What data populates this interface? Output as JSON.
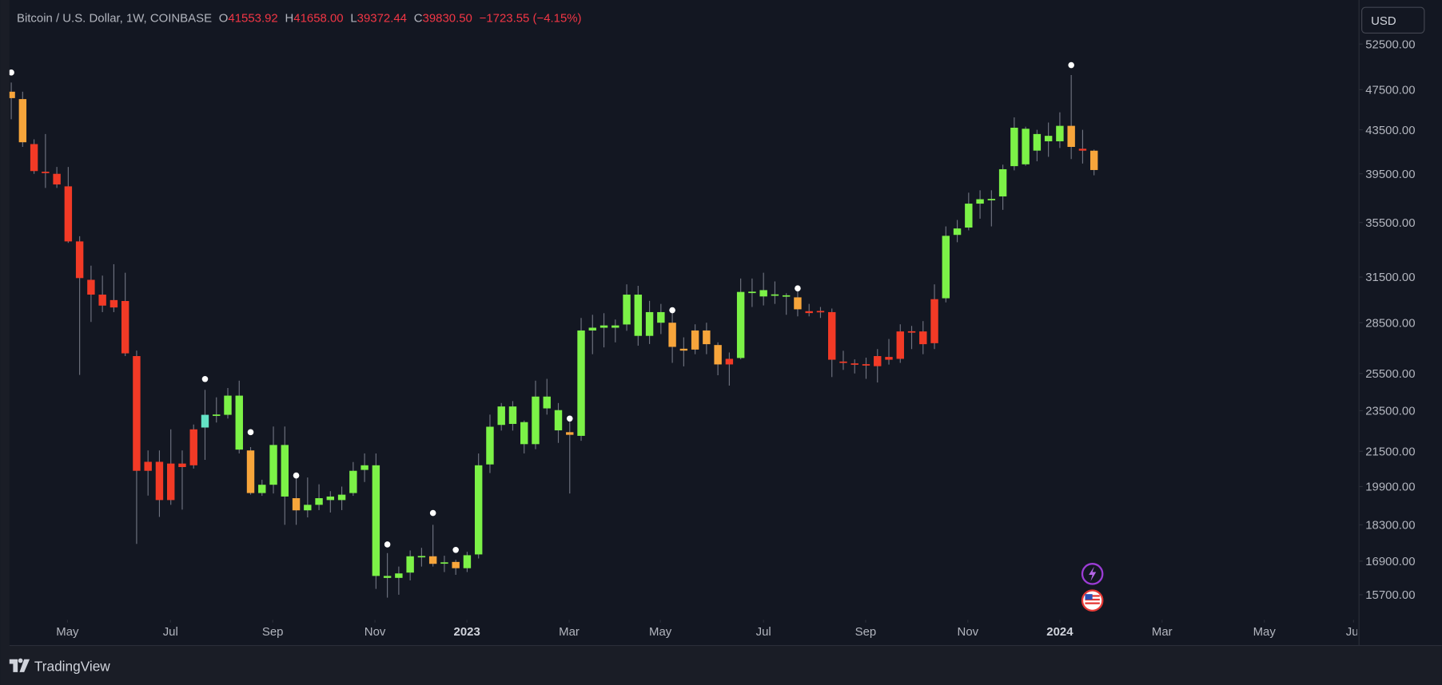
{
  "chart_data": {
    "type": "candlestick",
    "title": "Bitcoin / U.S. Dollar, 1W, COINBASE",
    "legend": [
      {
        "prefix": "O",
        "value": 41553.92,
        "label": "41553.92"
      },
      {
        "prefix": "H",
        "value": 41658,
        "label": "41658.00"
      },
      {
        "prefix": "L",
        "value": 39372.44,
        "label": "39372.44"
      },
      {
        "prefix": "C",
        "value": 39830.5,
        "label": "39830.50"
      }
    ],
    "change": "−1723.55 (−4.15%)",
    "currency": "USD",
    "brand": "TradingView",
    "log_scale": true,
    "grid": false,
    "open": [
      47290,
      46530,
      42160,
      39660,
      39500,
      38430,
      34060,
      31310,
      30310,
      29950,
      29890,
      26490,
      20600,
      21010,
      19320,
      20930,
      20850,
      22650,
      23290,
      23290,
      24290,
      21540,
      19620,
      19980,
      21800,
      19400,
      18890,
      19120,
      19320,
      19320,
      19620,
      20640,
      20850,
      16360,
      16290,
      16480,
      17080,
      17080,
      16840,
      16870,
      16640,
      17150,
      20890,
      22780,
      23720,
      22920,
      21840,
      24240,
      23530,
      22420,
      22240,
      28020,
      28190,
      28190,
      28390,
      30310,
      27690,
      29170,
      28500,
      26920,
      26870,
      28020,
      27140,
      26010,
      26380,
      30490,
      30190,
      30310,
      30250,
      30130,
      29230,
      29230,
      29170,
      26170,
      26050,
      26010,
      25910,
      26440,
      26330,
      27960,
      27960,
      27250,
      30070,
      34550,
      35110,
      37000,
      37360,
      37590,
      40170,
      43600,
      41560,
      42420,
      42420,
      43880,
      41730,
      41553.92
    ],
    "high": [
      48250,
      47290,
      42600,
      43100,
      40100,
      40100,
      34450,
      32300,
      31600,
      32400,
      31800,
      26810,
      21540,
      21540,
      22560,
      21540,
      22800,
      24600,
      24200,
      24700,
      25100,
      21700,
      20200,
      22700,
      22700,
      20400,
      20300,
      20000,
      19700,
      19900,
      21000,
      21400,
      21400,
      17200,
      16700,
      17300,
      17400,
      18300,
      17100,
      16950,
      17250,
      21400,
      23300,
      23900,
      24000,
      23000,
      25100,
      25200,
      23900,
      23000,
      28800,
      29000,
      29100,
      28700,
      31000,
      30900,
      29900,
      29700,
      29200,
      27600,
      28400,
      28500,
      27300,
      26700,
      31400,
      31400,
      31800,
      31200,
      30400,
      30700,
      29700,
      29500,
      29400,
      26800,
      26300,
      26400,
      26900,
      27500,
      28400,
      28300,
      28600,
      31000,
      35200,
      35700,
      37900,
      38100,
      38100,
      40300,
      44700,
      43800,
      43500,
      44200,
      45200,
      49050,
      43500,
      41658
    ],
    "low": [
      44520,
      41900,
      39500,
      38300,
      38300,
      33950,
      25420,
      28550,
      29170,
      29170,
      26490,
      17550,
      19510,
      18620,
      19120,
      18920,
      20700,
      21100,
      22900,
      23100,
      21400,
      19550,
      19500,
      19600,
      18300,
      18300,
      18600,
      18900,
      18800,
      18900,
      19500,
      20100,
      15900,
      15600,
      15700,
      16200,
      16700,
      16700,
      16500,
      16400,
      16500,
      17000,
      20500,
      22500,
      22500,
      21400,
      21600,
      23300,
      21900,
      19600,
      22000,
      26600,
      27000,
      27300,
      28000,
      27100,
      27200,
      27800,
      26100,
      25900,
      26600,
      26600,
      25400,
      24830,
      26300,
      29500,
      29600,
      29700,
      29000,
      28900,
      28900,
      28800,
      25300,
      25700,
      25500,
      25200,
      25000,
      26000,
      26100,
      26900,
      26600,
      26900,
      29800,
      34000,
      34900,
      35800,
      35200,
      36500,
      39800,
      40200,
      40600,
      41000,
      41800,
      40800,
      40400,
      39372.44
    ],
    "close": [
      46630,
      42330,
      39740,
      39580,
      38590,
      34060,
      31430,
      30310,
      29590,
      29470,
      26650,
      20600,
      21010,
      19320,
      20930,
      20770,
      22560,
      23290,
      23250,
      24290,
      21580,
      19620,
      19980,
      21800,
      19470,
      18890,
      19120,
      19400,
      19470,
      19550,
      20600,
      20850,
      16360,
      16290,
      16450,
      17080,
      17050,
      16800,
      16820,
      16640,
      17120,
      20850,
      22690,
      23720,
      22830,
      21840,
      24240,
      23620,
      22510,
      22290,
      28020,
      28190,
      28330,
      28330,
      30310,
      27690,
      29170,
      28500,
      27030,
      26810,
      28020,
      27190,
      26010,
      26330,
      30490,
      30430,
      30610,
      30250,
      30190,
      29350,
      29110,
      29170,
      26280,
      26100,
      26010,
      25960,
      26490,
      26280,
      27960,
      27900,
      27190,
      30010,
      34480,
      35040,
      37000,
      37360,
      37300,
      39900,
      43700,
      40330,
      43100,
      42930,
      43880,
      41900,
      41560,
      39830.5
    ],
    "colors": [
      "#f7a53b",
      "#f7a53b",
      "#f23a26",
      "#f23a26",
      "#f23a26",
      "#f23a26",
      "#f23a26",
      "#f23a26",
      "#f23a26",
      "#f23a26",
      "#f23a26",
      "#f23a26",
      "#f23a26",
      "#f23a26",
      "#f23a26",
      "#f23a26",
      "#f23a26",
      "#63e3c6",
      "#7cf247",
      "#7cf247",
      "#7cf247",
      "#f7a53b",
      "#7cf247",
      "#7cf247",
      "#7cf247",
      "#f7a53b",
      "#7cf247",
      "#7cf247",
      "#7cf247",
      "#7cf247",
      "#7cf247",
      "#7cf247",
      "#7cf247",
      "#7cf247",
      "#7cf247",
      "#7cf247",
      "#7cf247",
      "#f7a53b",
      "#7cf247",
      "#f7a53b",
      "#7cf247",
      "#7cf247",
      "#7cf247",
      "#7cf247",
      "#7cf247",
      "#7cf247",
      "#7cf247",
      "#7cf247",
      "#7cf247",
      "#f7a53b",
      "#7cf247",
      "#7cf247",
      "#7cf247",
      "#7cf247",
      "#7cf247",
      "#7cf247",
      "#7cf247",
      "#7cf247",
      "#f7a53b",
      "#f7a53b",
      "#f7a53b",
      "#f7a53b",
      "#f7a53b",
      "#f23a26",
      "#7cf247",
      "#7cf247",
      "#7cf247",
      "#7cf247",
      "#7cf247",
      "#f7a53b",
      "#f23a26",
      "#f23a26",
      "#f23a26",
      "#f23a26",
      "#f23a26",
      "#f23a26",
      "#f23a26",
      "#f23a26",
      "#f23a26",
      "#f23a26",
      "#f23a26",
      "#f23a26",
      "#7cf247",
      "#7cf247",
      "#7cf247",
      "#7cf247",
      "#7cf247",
      "#7cf247",
      "#7cf247",
      "#7cf247",
      "#7cf247",
      "#7cf247",
      "#7cf247",
      "#f7a53b",
      "#f23a26",
      "#f7a53b"
    ],
    "wick_color": "#6f7380",
    "marker_color": "#ffffff",
    "marker_x": [
      0,
      17,
      21,
      25,
      33,
      37,
      39,
      49,
      58,
      69,
      93
    ],
    "marker_values": [
      49320,
      25190,
      22420,
      20390,
      17530,
      18780,
      17320,
      23100,
      29290,
      30730,
      50130
    ],
    "xlim": [
      -0.16,
      118.25
    ],
    "xticks": [
      {
        "value": 4.93,
        "label": "May"
      },
      {
        "value": 13.97,
        "label": "Jul"
      },
      {
        "value": 22.94,
        "label": "Sep"
      },
      {
        "value": 31.91,
        "label": "Nov"
      },
      {
        "value": 39.98,
        "label": "2023"
      },
      {
        "value": 48.95,
        "label": "Mar"
      },
      {
        "value": 56.95,
        "label": "May"
      },
      {
        "value": 66.0,
        "label": "Jul"
      },
      {
        "value": 74.96,
        "label": "Sep"
      },
      {
        "value": 83.93,
        "label": "Nov"
      },
      {
        "value": 92.0,
        "label": "2024"
      },
      {
        "value": 100.97,
        "label": "Mar"
      },
      {
        "value": 109.94,
        "label": "May"
      },
      {
        "value": 117.77,
        "label": "Jul"
      }
    ],
    "ylim": [
      14860,
      57240
    ],
    "yticks": [
      {
        "value": 52500,
        "label": "52500.00"
      },
      {
        "value": 47500,
        "label": "47500.00"
      },
      {
        "value": 43500,
        "label": "43500.00"
      },
      {
        "value": 39500,
        "label": "39500.00"
      },
      {
        "value": 35500,
        "label": "35500.00"
      },
      {
        "value": 31500,
        "label": "31500.00"
      },
      {
        "value": 28500,
        "label": "28500.00"
      },
      {
        "value": 25500,
        "label": "25500.00"
      },
      {
        "value": 23500,
        "label": "23500.00"
      },
      {
        "value": 21500,
        "label": "21500.00"
      },
      {
        "value": 19900,
        "label": "19900.00"
      },
      {
        "value": 18300,
        "label": "18300.00"
      },
      {
        "value": 16900,
        "label": "16900.00"
      },
      {
        "value": 15700,
        "label": "15700.00"
      }
    ]
  }
}
